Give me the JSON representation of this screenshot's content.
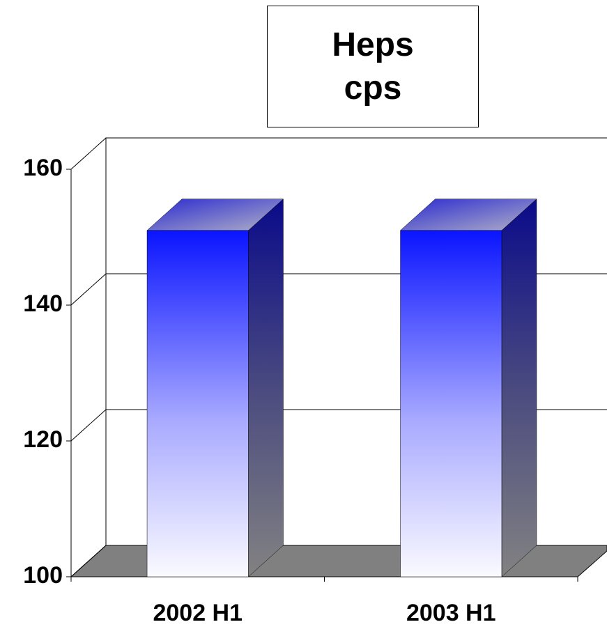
{
  "chart_data": {
    "type": "bar3d",
    "title": "Heps cps",
    "categories": [
      "2002 H1",
      "2003 H1"
    ],
    "values": [
      151,
      151
    ],
    "ylim": [
      100,
      160
    ],
    "yticks": [
      100,
      120,
      140,
      160
    ],
    "grid": true
  }
}
